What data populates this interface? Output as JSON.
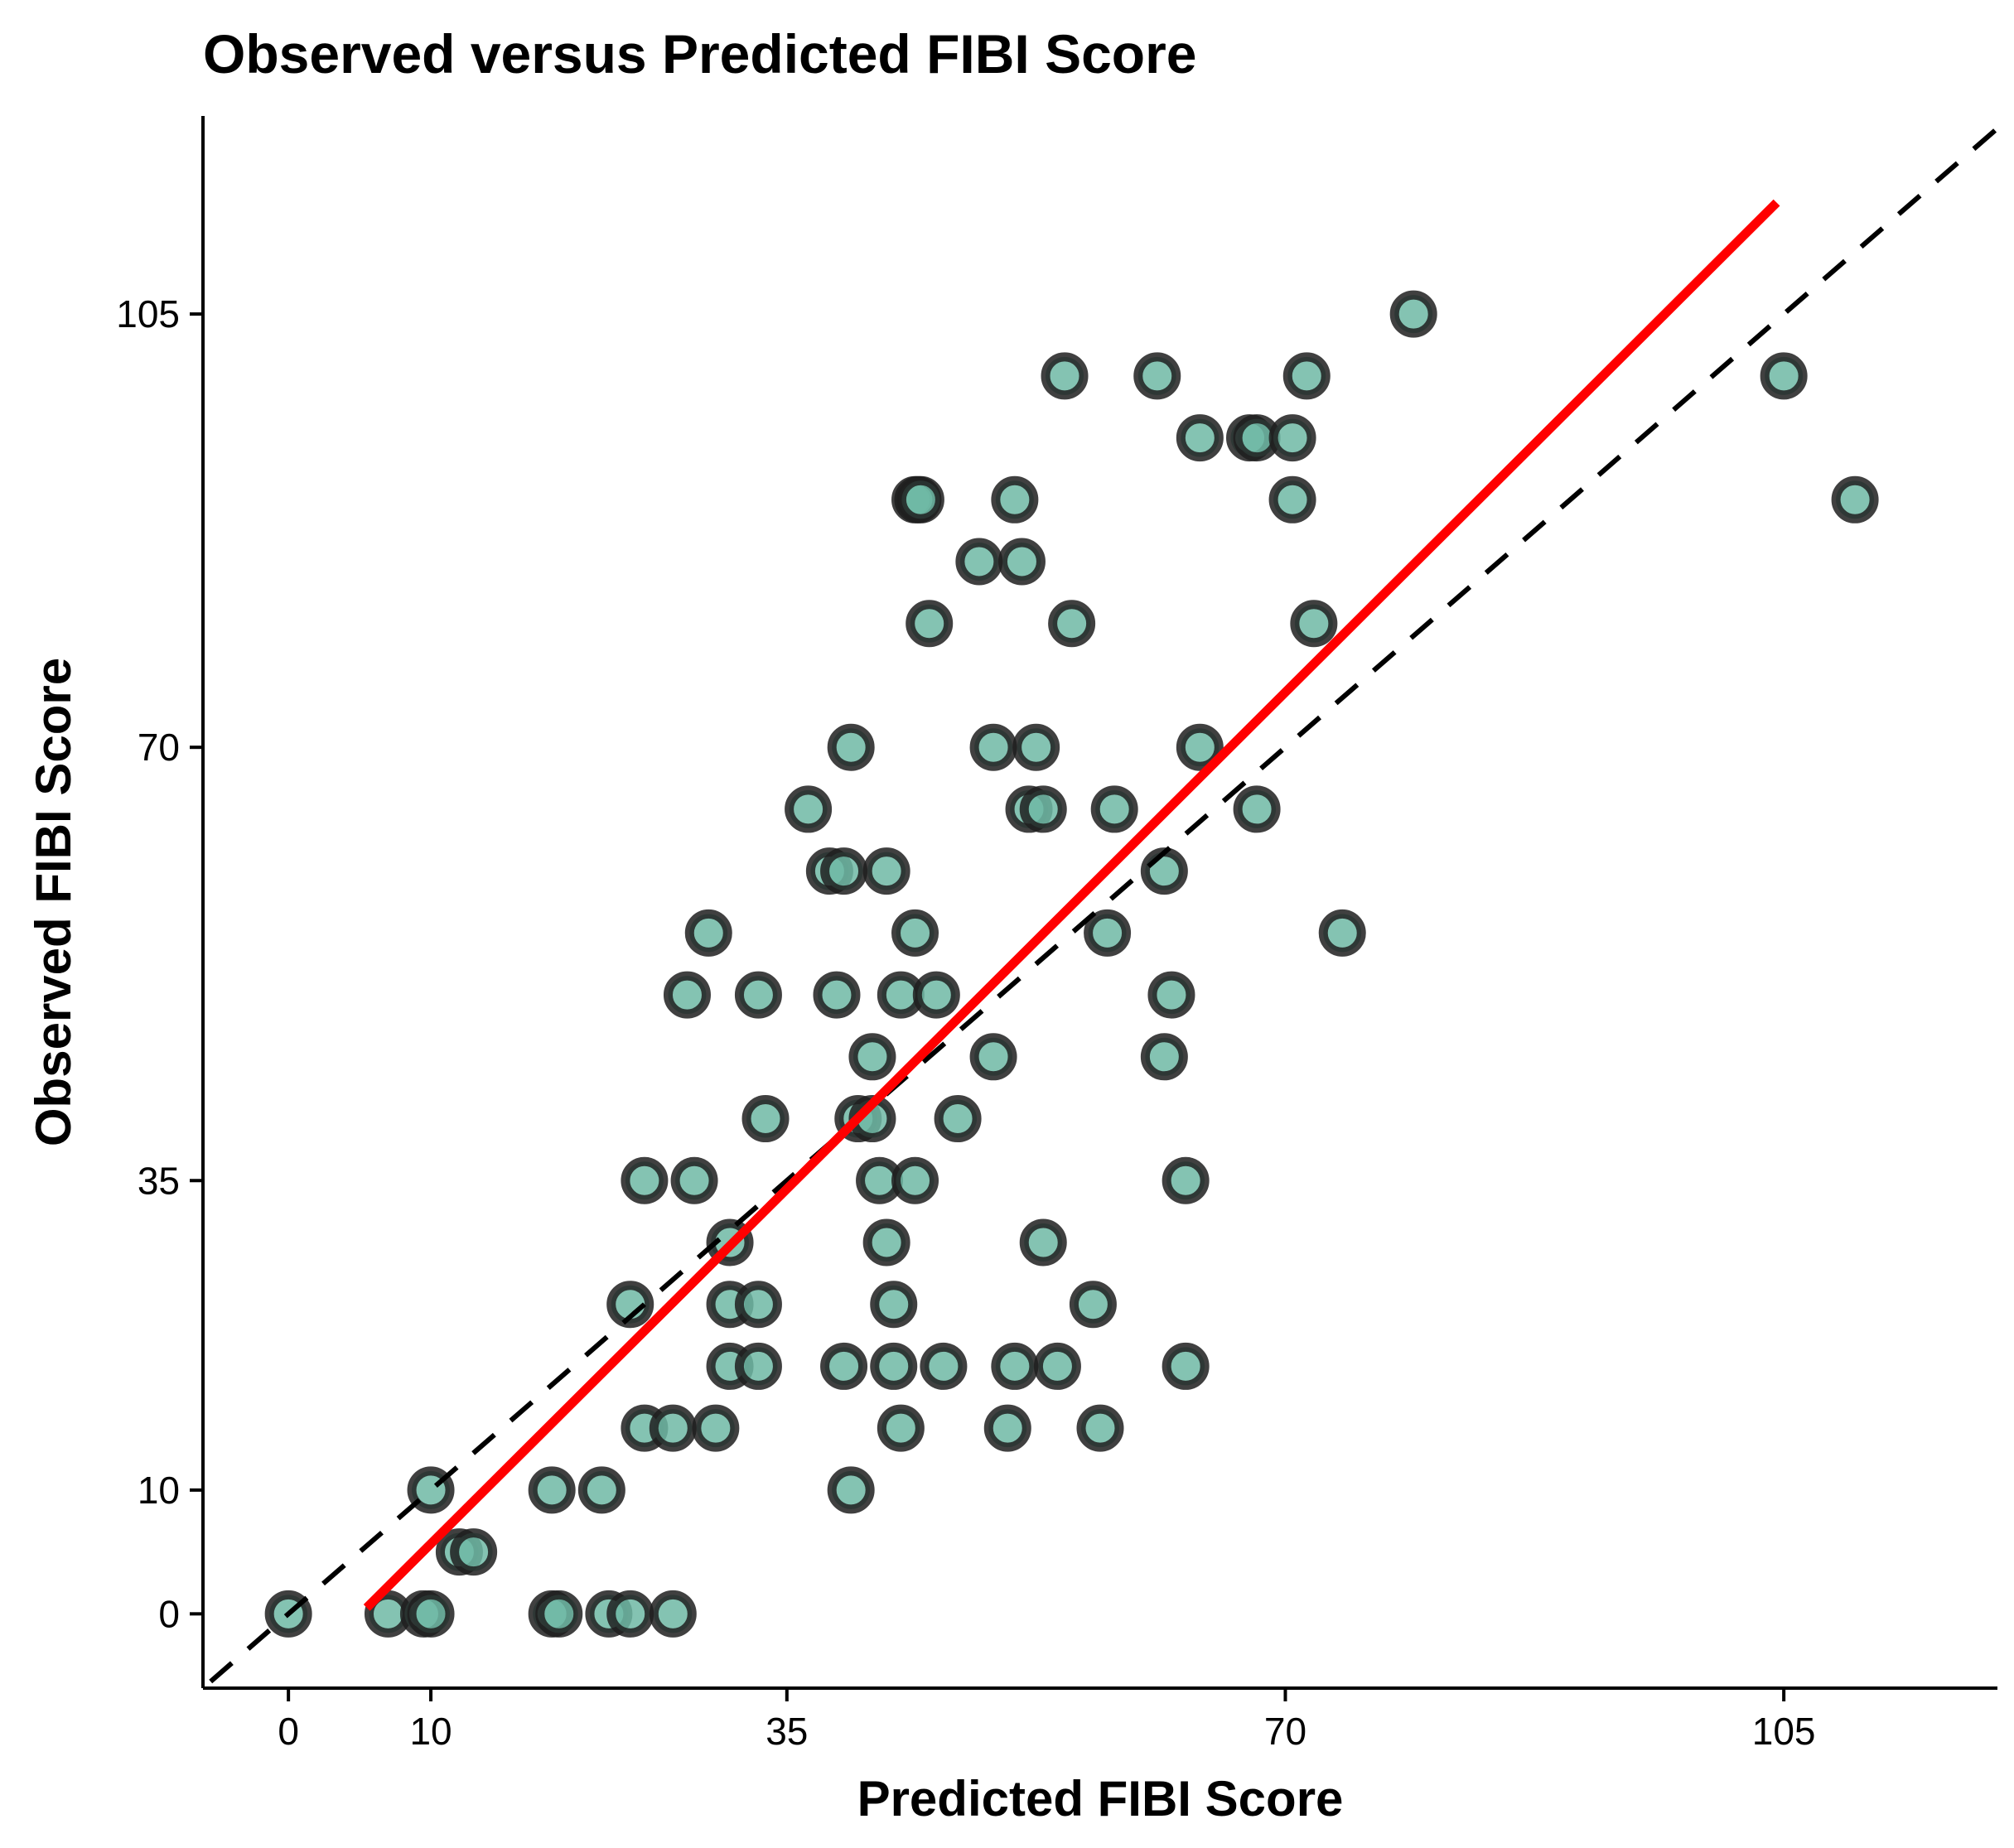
{
  "chart_data": {
    "type": "scatter",
    "title": "Observed versus Predicted FIBI Score",
    "xlabel": "Predicted FIBI Score",
    "ylabel": "Observed FIBI Score",
    "xlim": [
      -6,
      120
    ],
    "ylim": [
      -6,
      121
    ],
    "xticks": [
      0,
      10,
      35,
      70,
      105
    ],
    "yticks": [
      0,
      10,
      35,
      70,
      105
    ],
    "grid": false,
    "point_color": "#6fb8a4",
    "point_edge_color": "#1f1f1f",
    "fit_line_color": "#ff0000",
    "reference_line_color": "#000000",
    "reference_line": {
      "style": "dashed",
      "slope": 1,
      "intercept": 0
    },
    "fit_line": {
      "x": [
        5.5,
        104.5
      ],
      "y": [
        0.5,
        114
      ]
    },
    "points": [
      {
        "x": 0,
        "y": 0
      },
      {
        "x": 7,
        "y": 0
      },
      {
        "x": 9.5,
        "y": 0
      },
      {
        "x": 10,
        "y": 0
      },
      {
        "x": 18.5,
        "y": 0
      },
      {
        "x": 19,
        "y": 0
      },
      {
        "x": 22.5,
        "y": 0
      },
      {
        "x": 24,
        "y": 0
      },
      {
        "x": 27,
        "y": 0
      },
      {
        "x": 12,
        "y": 5
      },
      {
        "x": 13,
        "y": 5
      },
      {
        "x": 10,
        "y": 10
      },
      {
        "x": 18.5,
        "y": 10
      },
      {
        "x": 22,
        "y": 10
      },
      {
        "x": 39.5,
        "y": 10
      },
      {
        "x": 25,
        "y": 15
      },
      {
        "x": 27,
        "y": 15
      },
      {
        "x": 30,
        "y": 15
      },
      {
        "x": 43,
        "y": 15
      },
      {
        "x": 50.5,
        "y": 15
      },
      {
        "x": 57,
        "y": 15
      },
      {
        "x": 31,
        "y": 20
      },
      {
        "x": 33,
        "y": 20
      },
      {
        "x": 39,
        "y": 20
      },
      {
        "x": 42.5,
        "y": 20
      },
      {
        "x": 46,
        "y": 20
      },
      {
        "x": 51,
        "y": 20
      },
      {
        "x": 54,
        "y": 20
      },
      {
        "x": 63,
        "y": 20
      },
      {
        "x": 24,
        "y": 25
      },
      {
        "x": 31,
        "y": 25
      },
      {
        "x": 33,
        "y": 25
      },
      {
        "x": 42.5,
        "y": 25
      },
      {
        "x": 56.5,
        "y": 25
      },
      {
        "x": 31,
        "y": 30
      },
      {
        "x": 42,
        "y": 30
      },
      {
        "x": 53,
        "y": 30
      },
      {
        "x": 25,
        "y": 35
      },
      {
        "x": 28.5,
        "y": 35
      },
      {
        "x": 41.5,
        "y": 35
      },
      {
        "x": 44,
        "y": 35
      },
      {
        "x": 63,
        "y": 35
      },
      {
        "x": 33.5,
        "y": 40
      },
      {
        "x": 40,
        "y": 40
      },
      {
        "x": 41,
        "y": 40
      },
      {
        "x": 47,
        "y": 40
      },
      {
        "x": 41,
        "y": 45
      },
      {
        "x": 49.5,
        "y": 45
      },
      {
        "x": 61.5,
        "y": 45
      },
      {
        "x": 28,
        "y": 50
      },
      {
        "x": 33,
        "y": 50
      },
      {
        "x": 38.5,
        "y": 50
      },
      {
        "x": 43,
        "y": 50
      },
      {
        "x": 45.5,
        "y": 50
      },
      {
        "x": 62,
        "y": 50
      },
      {
        "x": 29.5,
        "y": 55
      },
      {
        "x": 44,
        "y": 55
      },
      {
        "x": 57.5,
        "y": 55
      },
      {
        "x": 74,
        "y": 55
      },
      {
        "x": 38,
        "y": 60
      },
      {
        "x": 39,
        "y": 60
      },
      {
        "x": 42,
        "y": 60
      },
      {
        "x": 61.5,
        "y": 60
      },
      {
        "x": 36.5,
        "y": 65
      },
      {
        "x": 52,
        "y": 65
      },
      {
        "x": 53,
        "y": 65
      },
      {
        "x": 58,
        "y": 65
      },
      {
        "x": 68,
        "y": 65
      },
      {
        "x": 39.5,
        "y": 70
      },
      {
        "x": 49.5,
        "y": 70
      },
      {
        "x": 52.5,
        "y": 70
      },
      {
        "x": 64,
        "y": 70
      },
      {
        "x": 45,
        "y": 80
      },
      {
        "x": 55,
        "y": 80
      },
      {
        "x": 72,
        "y": 80
      },
      {
        "x": 48.5,
        "y": 85
      },
      {
        "x": 51.5,
        "y": 85
      },
      {
        "x": 44,
        "y": 90
      },
      {
        "x": 44.2,
        "y": 90
      },
      {
        "x": 44.4,
        "y": 90
      },
      {
        "x": 51,
        "y": 90
      },
      {
        "x": 70.5,
        "y": 90
      },
      {
        "x": 110,
        "y": 90
      },
      {
        "x": 64,
        "y": 95
      },
      {
        "x": 67.5,
        "y": 95
      },
      {
        "x": 68,
        "y": 95
      },
      {
        "x": 70.5,
        "y": 95
      },
      {
        "x": 54.5,
        "y": 100
      },
      {
        "x": 61,
        "y": 100
      },
      {
        "x": 71.5,
        "y": 100
      },
      {
        "x": 105,
        "y": 100
      },
      {
        "x": 79,
        "y": 105
      }
    ]
  }
}
